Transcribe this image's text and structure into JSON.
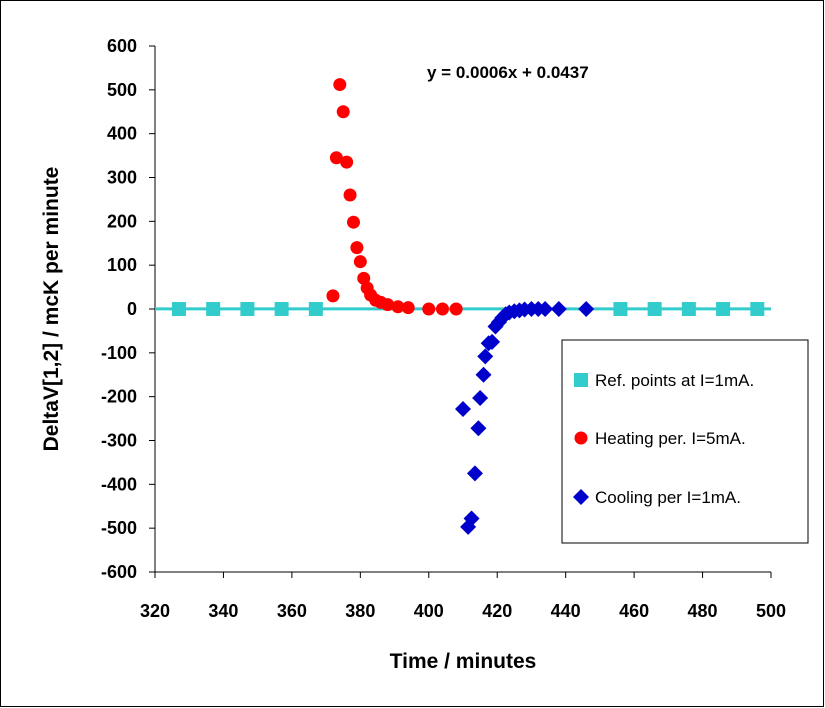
{
  "chart_data": {
    "type": "scatter",
    "xlabel": "Time / minutes",
    "ylabel": "DeltaV[1,2] / mcK per minute",
    "xlim": [
      320,
      500
    ],
    "ylim": [
      -600,
      600
    ],
    "x_ticks": [
      "320",
      "340",
      "360",
      "380",
      "400",
      "420",
      "440",
      "460",
      "480",
      "500"
    ],
    "y_ticks": [
      "600",
      "500",
      "400",
      "300",
      "200",
      "100",
      "0",
      "-100",
      "-200",
      "-300",
      "-400",
      "-500",
      "-600"
    ],
    "grid": false,
    "legend_position": "lower-right",
    "annotation": "y = 0.0006x + 0.0437",
    "trendline": {
      "slope": 0.0006,
      "intercept": 0.0437,
      "color": "#33CCCC"
    },
    "series": [
      {
        "name": "Ref. points at I=1mA.",
        "marker": "square",
        "color": "#33CCCC",
        "x": [
          327,
          337,
          347,
          357,
          367,
          456,
          466,
          476,
          486,
          496
        ],
        "y": [
          0,
          0,
          0,
          0,
          0,
          0,
          0,
          0,
          0,
          0
        ]
      },
      {
        "name": "Heating per. I=5mA.",
        "marker": "circle",
        "color": "#FF0000",
        "x": [
          372,
          373,
          374,
          375,
          376,
          377,
          378,
          379,
          380,
          381,
          382,
          383,
          384.5,
          386,
          388,
          391,
          394,
          400,
          404,
          408
        ],
        "y": [
          30,
          345,
          512,
          450,
          335,
          260,
          198,
          140,
          108,
          70,
          48,
          32,
          20,
          15,
          10,
          5,
          3,
          0,
          0,
          0
        ]
      },
      {
        "name": "Cooling per I=1mA.",
        "marker": "diamond",
        "color": "#0000CC",
        "x": [
          410,
          411.5,
          412.5,
          413.5,
          414.5,
          415,
          416,
          416.5,
          417.5,
          418.5,
          419.5,
          420.5,
          421.5,
          422.5,
          423.5,
          425,
          426.5,
          428,
          430,
          432,
          434,
          438,
          446
        ],
        "y": [
          -228,
          -497,
          -478,
          -375,
          -272,
          -203,
          -150,
          -108,
          -78,
          -75,
          -40,
          -30,
          -20,
          -12,
          -8,
          -5,
          -3,
          -1,
          0,
          0,
          0,
          0,
          0
        ]
      }
    ]
  }
}
